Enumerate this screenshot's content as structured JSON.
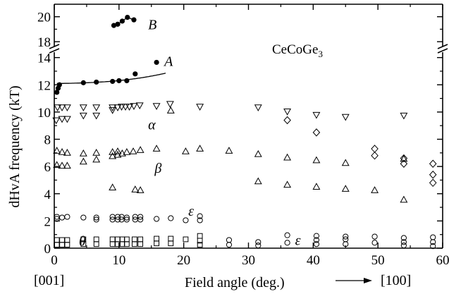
{
  "chart_data": {
    "type": "scatter",
    "sample_label": "CeCoGe",
    "sample_subscript": "3",
    "xlabel": "Field angle (deg.)",
    "ylabel": "dHvA frequency (kT)",
    "x_start_label": "[001]",
    "x_end_label": "[100]",
    "xlim": [
      0,
      60
    ],
    "ylim_lower": [
      0,
      14.5
    ],
    "ylim_upper": [
      17.5,
      21
    ],
    "x_ticks": [
      0,
      10,
      20,
      30,
      40,
      50,
      60
    ],
    "y_ticks_lower": [
      0,
      2,
      4,
      6,
      8,
      10,
      12,
      14
    ],
    "y_ticks_upper": [
      18,
      20
    ],
    "branch_labels": [
      {
        "text": "B",
        "x": 14.5,
        "y": 19.4
      },
      {
        "text": "A",
        "x": 17.0,
        "y": 13.75
      },
      {
        "text": "α",
        "x": 14.5,
        "y": 9.1
      },
      {
        "text": "β",
        "x": 15.5,
        "y": 5.9
      },
      {
        "text": "ε",
        "x": 20.7,
        "y": 2.75
      },
      {
        "text": "θ",
        "x": 3.8,
        "y": 0.55
      },
      {
        "text": "ε",
        "x": 37.2,
        "y": 0.6
      }
    ],
    "series": [
      {
        "branch": "B",
        "marker": "filled-circle",
        "connected": true,
        "points": [
          [
            9.2,
            19.3
          ],
          [
            9.8,
            19.4
          ],
          [
            10.5,
            19.65
          ],
          [
            11.3,
            19.95
          ],
          [
            12.3,
            19.75
          ]
        ]
      },
      {
        "branch": "A",
        "marker": "filled-circle",
        "points": [
          [
            0.4,
            11.45
          ],
          [
            0.6,
            11.75
          ],
          [
            0.8,
            12.0
          ],
          [
            4.5,
            12.15
          ],
          [
            6.5,
            12.2
          ],
          [
            9.0,
            12.25
          ],
          [
            10.0,
            12.3
          ],
          [
            11.2,
            12.3
          ],
          [
            12.5,
            12.8
          ],
          [
            15.8,
            13.65
          ]
        ]
      },
      {
        "branch": "alpha",
        "marker": "triangle-down",
        "points": [
          [
            0.3,
            9.4
          ],
          [
            0.5,
            10.35
          ],
          [
            1.2,
            10.35
          ],
          [
            1.2,
            9.5
          ],
          [
            2.0,
            10.35
          ],
          [
            2.0,
            9.5
          ],
          [
            4.5,
            10.35
          ],
          [
            4.5,
            9.75
          ],
          [
            6.5,
            10.35
          ],
          [
            6.5,
            9.75
          ],
          [
            9.0,
            10.35
          ],
          [
            9.0,
            10.15
          ],
          [
            9.8,
            10.35
          ],
          [
            10.4,
            10.4
          ],
          [
            11.0,
            10.4
          ],
          [
            11.6,
            10.4
          ],
          [
            12.3,
            10.45
          ],
          [
            13.2,
            10.5
          ],
          [
            15.8,
            10.45
          ],
          [
            17.9,
            10.6
          ],
          [
            22.5,
            10.4
          ],
          [
            31.5,
            10.35
          ],
          [
            36.0,
            10.05
          ],
          [
            40.5,
            9.8
          ],
          [
            45.0,
            9.65
          ],
          [
            54.0,
            9.75
          ]
        ]
      },
      {
        "branch": "alpha",
        "marker": "triangle-up",
        "points": [
          [
            18.0,
            10.1
          ]
        ]
      },
      {
        "branch": "alpha",
        "marker": "diamond",
        "points": [
          [
            36.0,
            9.4
          ],
          [
            40.5,
            8.5
          ],
          [
            49.5,
            7.3
          ],
          [
            49.5,
            6.8
          ],
          [
            54.0,
            6.6
          ],
          [
            54.0,
            6.2
          ],
          [
            58.5,
            6.2
          ],
          [
            58.5,
            5.4
          ],
          [
            58.5,
            4.8
          ]
        ]
      },
      {
        "branch": "beta",
        "marker": "triangle-up",
        "points": [
          [
            0.4,
            6.1
          ],
          [
            0.4,
            7.15
          ],
          [
            1.2,
            6.05
          ],
          [
            1.2,
            7.05
          ],
          [
            2.0,
            6.05
          ],
          [
            2.0,
            7.0
          ],
          [
            4.5,
            6.35
          ],
          [
            4.5,
            6.95
          ],
          [
            6.5,
            6.5
          ],
          [
            6.5,
            7.0
          ],
          [
            9.0,
            6.75
          ],
          [
            9.0,
            7.05
          ],
          [
            9.8,
            6.85
          ],
          [
            9.8,
            7.1
          ],
          [
            10.5,
            6.95
          ],
          [
            11.2,
            7.05
          ],
          [
            12.2,
            7.1
          ],
          [
            13.3,
            7.2
          ],
          [
            15.8,
            7.3
          ],
          [
            20.3,
            7.1
          ],
          [
            22.5,
            7.3
          ],
          [
            27.0,
            7.15
          ],
          [
            31.5,
            6.9
          ],
          [
            36.0,
            6.65
          ],
          [
            40.5,
            6.45
          ],
          [
            45.0,
            6.25
          ],
          [
            54.0,
            6.55
          ],
          [
            31.5,
            4.9
          ],
          [
            36.0,
            4.65
          ],
          [
            40.5,
            4.5
          ],
          [
            45.0,
            4.35
          ],
          [
            49.5,
            4.25
          ],
          [
            54.0,
            3.55
          ],
          [
            9.0,
            4.45
          ],
          [
            12.5,
            4.3
          ],
          [
            13.3,
            4.25
          ]
        ]
      },
      {
        "branch": "epsilon",
        "marker": "circle",
        "points": [
          [
            0.4,
            2.15
          ],
          [
            0.4,
            2.3
          ],
          [
            1.2,
            2.25
          ],
          [
            2.0,
            2.3
          ],
          [
            4.5,
            2.25
          ],
          [
            6.5,
            2.25
          ],
          [
            6.5,
            2.1
          ],
          [
            9.0,
            2.3
          ],
          [
            9.0,
            2.1
          ],
          [
            9.8,
            2.3
          ],
          [
            9.8,
            2.1
          ],
          [
            10.4,
            2.3
          ],
          [
            10.4,
            2.1
          ],
          [
            11.2,
            2.25
          ],
          [
            11.2,
            2.1
          ],
          [
            12.5,
            2.3
          ],
          [
            12.5,
            2.1
          ],
          [
            13.3,
            2.3
          ],
          [
            13.3,
            2.1
          ],
          [
            15.8,
            2.15
          ],
          [
            18.0,
            2.2
          ],
          [
            20.3,
            2.05
          ],
          [
            22.5,
            2.35
          ],
          [
            22.5,
            2.05
          ],
          [
            27.0,
            0.6
          ],
          [
            27.0,
            0.25
          ],
          [
            31.5,
            0.45
          ],
          [
            31.5,
            0.2
          ],
          [
            36.0,
            0.95
          ],
          [
            36.0,
            0.4
          ],
          [
            40.5,
            0.9
          ],
          [
            40.5,
            0.6
          ],
          [
            40.5,
            0.3
          ],
          [
            45.0,
            0.85
          ],
          [
            45.0,
            0.65
          ],
          [
            45.0,
            0.3
          ],
          [
            49.5,
            0.85
          ],
          [
            49.5,
            0.4
          ],
          [
            54.0,
            0.75
          ],
          [
            54.0,
            0.45
          ],
          [
            54.0,
            0.2
          ],
          [
            58.5,
            0.8
          ],
          [
            58.5,
            0.45
          ],
          [
            58.5,
            0.15
          ]
        ]
      },
      {
        "branch": "theta",
        "marker": "square",
        "points": [
          [
            0.4,
            0.6
          ],
          [
            0.4,
            0.25
          ],
          [
            1.2,
            0.6
          ],
          [
            1.2,
            0.25
          ],
          [
            2.0,
            0.6
          ],
          [
            2.0,
            0.25
          ],
          [
            4.5,
            0.65
          ],
          [
            4.5,
            0.3
          ],
          [
            6.5,
            0.65
          ],
          [
            6.5,
            0.3
          ],
          [
            9.0,
            0.65
          ],
          [
            9.0,
            0.3
          ],
          [
            9.8,
            0.65
          ],
          [
            9.8,
            0.3
          ],
          [
            10.5,
            0.65
          ],
          [
            10.5,
            0.3
          ],
          [
            11.2,
            0.65
          ],
          [
            11.2,
            0.3
          ],
          [
            12.4,
            0.65
          ],
          [
            12.4,
            0.3
          ],
          [
            13.3,
            0.65
          ],
          [
            13.3,
            0.3
          ],
          [
            15.8,
            0.7
          ],
          [
            15.8,
            0.35
          ],
          [
            18.0,
            0.7
          ],
          [
            18.0,
            0.35
          ],
          [
            20.3,
            0.65
          ],
          [
            22.5,
            0.9
          ],
          [
            22.5,
            0.55
          ],
          [
            22.5,
            0.25
          ]
        ]
      }
    ]
  }
}
